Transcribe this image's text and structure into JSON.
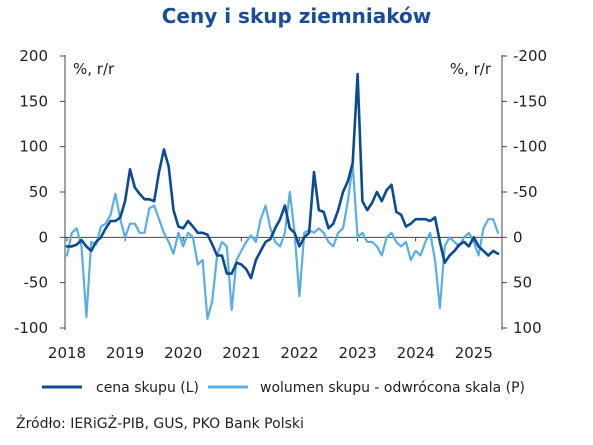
{
  "chart_data": {
    "type": "line",
    "title": "Ceny i skup ziemniaków",
    "left_axis": {
      "unit": "%, r/r",
      "ylim": [
        -100,
        200
      ],
      "ticks": [
        "200",
        "150",
        "100",
        "50",
        "0",
        "-50",
        "-100"
      ]
    },
    "right_axis": {
      "unit": "%, r/r",
      "inverted": true,
      "ylim": [
        100,
        -200
      ],
      "ticks": [
        "-200",
        "-150",
        "-100",
        "-50",
        "0",
        "50",
        "100"
      ]
    },
    "x_ticks": [
      "2018",
      "2019",
      "2020",
      "2021",
      "2022",
      "2023",
      "2024",
      "2025"
    ],
    "x_start": "2018-01",
    "x_end": "2025-08",
    "grid": false,
    "legend_position": "bottom",
    "source": "Źródło: IERiGŻ-PIB, GUS, PKO Bank Polski",
    "series": [
      {
        "name": "cena skupu (L)",
        "axis": "left",
        "color": "#0d4a8f",
        "values": [
          -10,
          -10,
          -8,
          -3,
          -10,
          -15,
          -5,
          0,
          10,
          18,
          18,
          22,
          40,
          75,
          55,
          48,
          42,
          42,
          40,
          72,
          97,
          78,
          30,
          12,
          10,
          18,
          12,
          5,
          5,
          3,
          -8,
          -20,
          -20,
          -40,
          -40,
          -28,
          -30,
          -35,
          -45,
          -25,
          -15,
          -5,
          -2,
          10,
          20,
          35,
          10,
          5,
          -10,
          0,
          5,
          72,
          30,
          28,
          10,
          15,
          30,
          50,
          62,
          82,
          180,
          40,
          30,
          38,
          50,
          40,
          52,
          58,
          28,
          25,
          12,
          15,
          20,
          20,
          20,
          18,
          22,
          -5,
          -28,
          -20,
          -15,
          -8,
          -5,
          -10,
          0,
          -10,
          -15,
          -20,
          -15,
          -18
        ]
      },
      {
        "name": "wolumen skupu - odwrócona skala (P)",
        "axis": "right",
        "color": "#5aaee8",
        "values": [
          20,
          -5,
          -10,
          10,
          88,
          5,
          8,
          -12,
          -15,
          -25,
          -48,
          -20,
          0,
          -15,
          -15,
          -5,
          -5,
          -32,
          -35,
          -20,
          -5,
          5,
          18,
          -5,
          10,
          -5,
          0,
          30,
          25,
          90,
          70,
          20,
          5,
          10,
          80,
          25,
          15,
          5,
          -2,
          5,
          -20,
          -35,
          -10,
          5,
          10,
          -5,
          -50,
          -5,
          65,
          -5,
          -8,
          -5,
          -10,
          -5,
          5,
          10,
          -5,
          -10,
          -40,
          -80,
          0,
          -5,
          5,
          5,
          10,
          20,
          0,
          -5,
          5,
          10,
          5,
          25,
          15,
          20,
          5,
          -5,
          25,
          78,
          10,
          0,
          5,
          10,
          0,
          -5,
          5,
          20,
          -10,
          -20,
          -20,
          -5
        ]
      }
    ]
  }
}
